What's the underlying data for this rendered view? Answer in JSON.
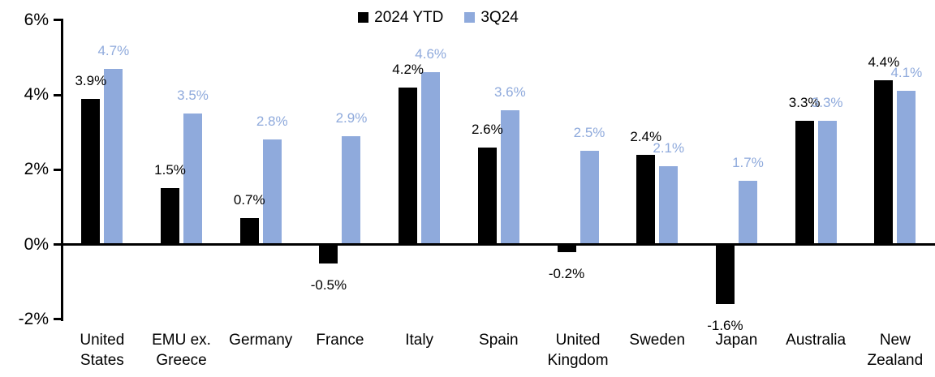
{
  "chart_data": {
    "type": "bar",
    "title": "",
    "xlabel": "",
    "ylabel": "",
    "categories": [
      "United States",
      "EMU ex. Greece",
      "Germany",
      "France",
      "Italy",
      "Spain",
      "United Kingdom",
      "Sweden",
      "Japan",
      "Australia",
      "New Zealand"
    ],
    "series": [
      {
        "name": "2024 YTD",
        "color": "#000000",
        "values": [
          3.9,
          1.5,
          0.7,
          -0.5,
          4.2,
          2.6,
          -0.2,
          2.4,
          -1.6,
          3.3,
          4.4
        ],
        "labels": [
          "3.9%",
          "1.5%",
          "0.7%",
          "-0.5%",
          "4.2%",
          "2.6%",
          "-0.2%",
          "2.4%",
          "-1.6%",
          "3.3%",
          "4.4%"
        ]
      },
      {
        "name": "3Q24",
        "color": "#8FAADC",
        "values": [
          4.7,
          3.5,
          2.8,
          2.9,
          4.6,
          3.6,
          2.5,
          2.1,
          1.7,
          3.3,
          4.1
        ],
        "labels": [
          "4.7%",
          "3.5%",
          "2.8%",
          "2.9%",
          "4.6%",
          "3.6%",
          "2.5%",
          "2.1%",
          "1.7%",
          "3.3%",
          "4.1%"
        ]
      }
    ],
    "ylim": [
      -2,
      6
    ],
    "y_ticks": [
      6,
      4,
      2,
      0,
      -2
    ],
    "y_tick_labels": [
      "6%",
      "4%",
      "2%",
      "0%",
      "-2%"
    ],
    "grid": false,
    "data_labels": true,
    "legend_position": "top-center",
    "colors": {
      "background": "#ffffff",
      "axis": "#000000"
    }
  }
}
